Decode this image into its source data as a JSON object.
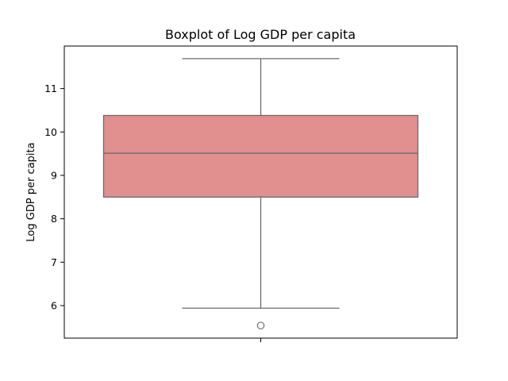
{
  "chart_data": {
    "type": "boxplot",
    "title": "Boxplot of Log GDP per capita",
    "xlabel": "",
    "ylabel": "Log GDP per capita",
    "ylim": [
      5.25,
      11.98
    ],
    "yticks": [
      6,
      7,
      8,
      9,
      10,
      11
    ],
    "grid": false,
    "box": {
      "whisker_low": 5.94,
      "q1": 8.5,
      "median": 9.51,
      "q3": 10.38,
      "whisker_high": 11.69,
      "outliers": [
        5.54
      ]
    },
    "colors": {
      "box_fill": "#e28f8f",
      "line": "#6b6b6b",
      "axes": "#000000"
    }
  }
}
